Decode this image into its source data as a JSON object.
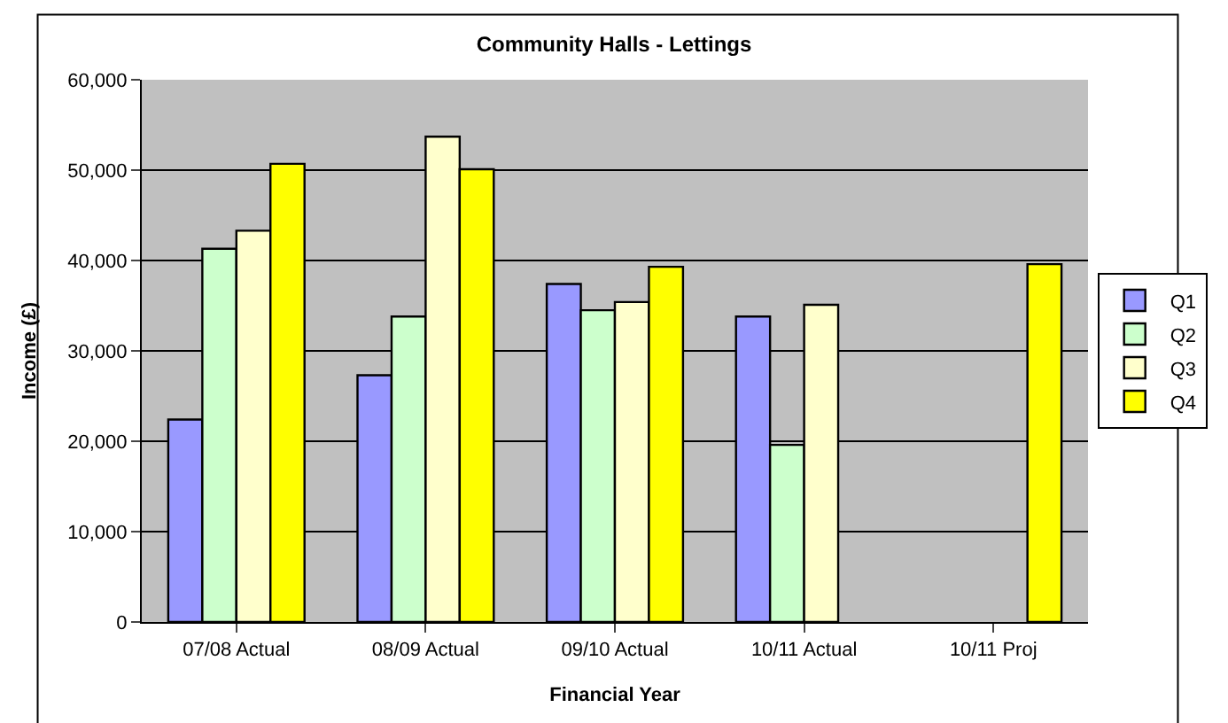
{
  "chart_data": {
    "type": "bar",
    "title": "Community Halls - Lettings",
    "xlabel": "Financial Year",
    "ylabel": "Income (£)",
    "categories": [
      "07/08 Actual",
      "08/09 Actual",
      "09/10 Actual",
      "10/11 Actual",
      "10/11 Proj"
    ],
    "series": [
      {
        "name": "Q1",
        "color": "#9999ff",
        "values": [
          22400,
          27300,
          37400,
          33800,
          null
        ]
      },
      {
        "name": "Q2",
        "color": "#ccffcc",
        "values": [
          41300,
          33800,
          34500,
          19600,
          null
        ]
      },
      {
        "name": "Q3",
        "color": "#ffffcc",
        "values": [
          43300,
          53700,
          35400,
          35100,
          null
        ]
      },
      {
        "name": "Q4",
        "color": "#ffff00",
        "values": [
          50700,
          50100,
          39300,
          null,
          39600
        ]
      }
    ],
    "ylim": [
      0,
      60000
    ],
    "yticks": [
      {
        "value": 0,
        "label": "0"
      },
      {
        "value": 10000,
        "label": "10,000"
      },
      {
        "value": 20000,
        "label": "20,000"
      },
      {
        "value": 30000,
        "label": "30,000"
      },
      {
        "value": 40000,
        "label": "40,000"
      },
      {
        "value": 50000,
        "label": "50,000"
      },
      {
        "value": 60000,
        "label": "60,000"
      }
    ],
    "grid": "y",
    "legend": "right"
  }
}
